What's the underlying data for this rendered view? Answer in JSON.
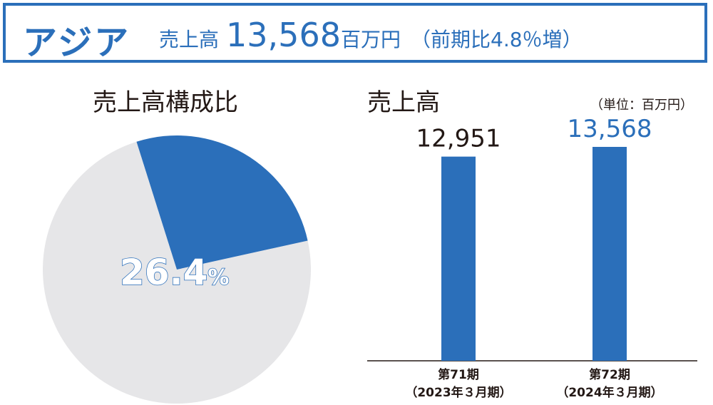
{
  "header": {
    "region": "アジア",
    "sales_label": "売上高",
    "sales_value": "13,568",
    "sales_unit": "百万円",
    "growth_text": "（前期比4.8％増）"
  },
  "pie_title": "売上高構成比",
  "bar_title": "売上高",
  "unit_note": "（単位：百万円）",
  "colors": {
    "accent": "#2b6fba",
    "pie_rest": "#e6e6e8",
    "text": "#231815"
  },
  "chart_data": [
    {
      "type": "pie",
      "title": "売上高構成比",
      "slices": [
        {
          "value": 26.4,
          "color": "#2b6fba",
          "label": "26.4%"
        },
        {
          "value": 73.6,
          "color": "#e6e6e8"
        }
      ]
    },
    {
      "type": "bar",
      "title": "売上高",
      "unit": "（単位：百万円）",
      "categories": [
        {
          "line1": "第71期",
          "line2": "（2023年３月期）"
        },
        {
          "line1": "第72期",
          "line2": "（2024年３月期）"
        }
      ],
      "values": [
        12951,
        13568
      ],
      "value_labels": [
        "12,951",
        "13,568"
      ],
      "label_colors": [
        "#231815",
        "#2b6fba"
      ],
      "bar_color": "#2b6fba"
    }
  ]
}
